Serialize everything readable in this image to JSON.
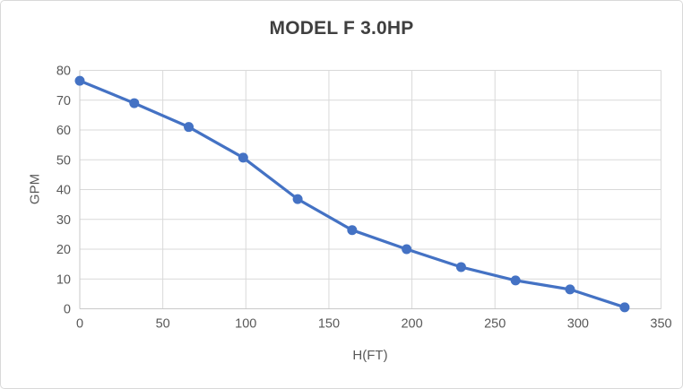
{
  "chart_frame": {
    "background": "#FFFFFF",
    "border_color": "#D9D9D9"
  },
  "chart_data": {
    "type": "line",
    "title": "MODEL F 3.0HP",
    "xlabel": "H(FT)",
    "ylabel": "GPM",
    "x": [
      0,
      32.8,
      65.6,
      98.4,
      131.2,
      164.0,
      196.8,
      229.6,
      262.4,
      295.2,
      328.1
    ],
    "y": [
      76.5,
      69,
      61,
      50.7,
      36.8,
      26.4,
      20,
      14,
      9.5,
      6.5,
      0.5
    ],
    "xlim": [
      0,
      350
    ],
    "ylim": [
      0,
      80
    ],
    "x_ticks": [
      0,
      50,
      100,
      150,
      200,
      250,
      300,
      350
    ],
    "y_ticks": [
      0,
      10,
      20,
      30,
      40,
      50,
      60,
      70,
      80
    ],
    "grid": true,
    "legend": false,
    "marker": "circle",
    "colors": {
      "line": "#4472C4",
      "marker": "#4472C4",
      "gridline": "#D9D9D9",
      "axis_line": "#C9C9C9",
      "axis_label": "#595959",
      "title": "#3F3F3F"
    }
  }
}
